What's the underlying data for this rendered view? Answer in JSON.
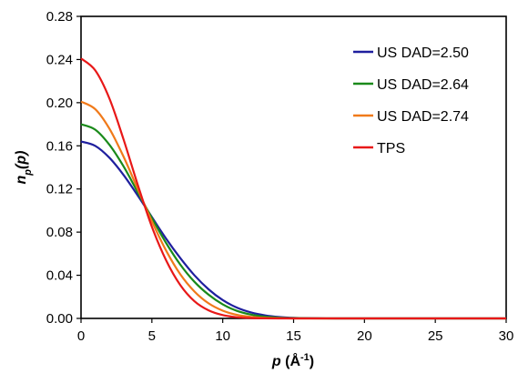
{
  "chart_data": {
    "type": "line",
    "title": "",
    "xlabel": "p (Å⁻¹)",
    "ylabel": "n_p(p)",
    "xlim": [
      0,
      30
    ],
    "ylim": [
      0,
      0.28
    ],
    "x_ticks": [
      "0",
      "5",
      "10",
      "15",
      "20",
      "25",
      "30"
    ],
    "y_ticks": [
      "0.00",
      "0.04",
      "0.08",
      "0.12",
      "0.16",
      "0.20",
      "0.24",
      "0.28"
    ],
    "grid": false,
    "legend_position": "top-right",
    "x": [
      0,
      1,
      2,
      3,
      4,
      5,
      6,
      7,
      8,
      9,
      10,
      11,
      12,
      13,
      14,
      15,
      16,
      18,
      20,
      22,
      25,
      28,
      30
    ],
    "series": [
      {
        "name": "US DAD=2.50",
        "color": "#1f1f9e",
        "values": [
          0.164,
          0.16,
          0.149,
          0.133,
          0.114,
          0.094,
          0.074,
          0.056,
          0.04,
          0.027,
          0.017,
          0.01,
          0.0055,
          0.0028,
          0.0013,
          0.0005,
          0.0002,
          0.0,
          0.0,
          0.0,
          0.0,
          0.0,
          0.0
        ]
      },
      {
        "name": "US DAD=2.64",
        "color": "#1a8a1a",
        "values": [
          0.18,
          0.175,
          0.161,
          0.141,
          0.117,
          0.093,
          0.07,
          0.05,
          0.034,
          0.022,
          0.013,
          0.007,
          0.0035,
          0.0016,
          0.0007,
          0.0003,
          0.0001,
          0.0,
          0.0,
          0.0,
          0.0,
          0.0,
          0.0
        ]
      },
      {
        "name": "US DAD=2.74",
        "color": "#f07a1a",
        "values": [
          0.201,
          0.194,
          0.176,
          0.15,
          0.12,
          0.09,
          0.063,
          0.041,
          0.025,
          0.014,
          0.0072,
          0.0033,
          0.0014,
          0.0005,
          0.0002,
          0.0,
          0.0,
          0.0,
          0.0,
          0.0,
          0.0,
          0.0,
          0.0
        ]
      },
      {
        "name": "TPS",
        "color": "#e81818",
        "values": [
          0.241,
          0.23,
          0.204,
          0.166,
          0.124,
          0.085,
          0.054,
          0.031,
          0.016,
          0.0075,
          0.0031,
          0.0011,
          0.0003,
          0.0001,
          0.0,
          0.0,
          0.0,
          0.0,
          0.0,
          0.0,
          0.0,
          0.0,
          0.0
        ]
      }
    ]
  }
}
